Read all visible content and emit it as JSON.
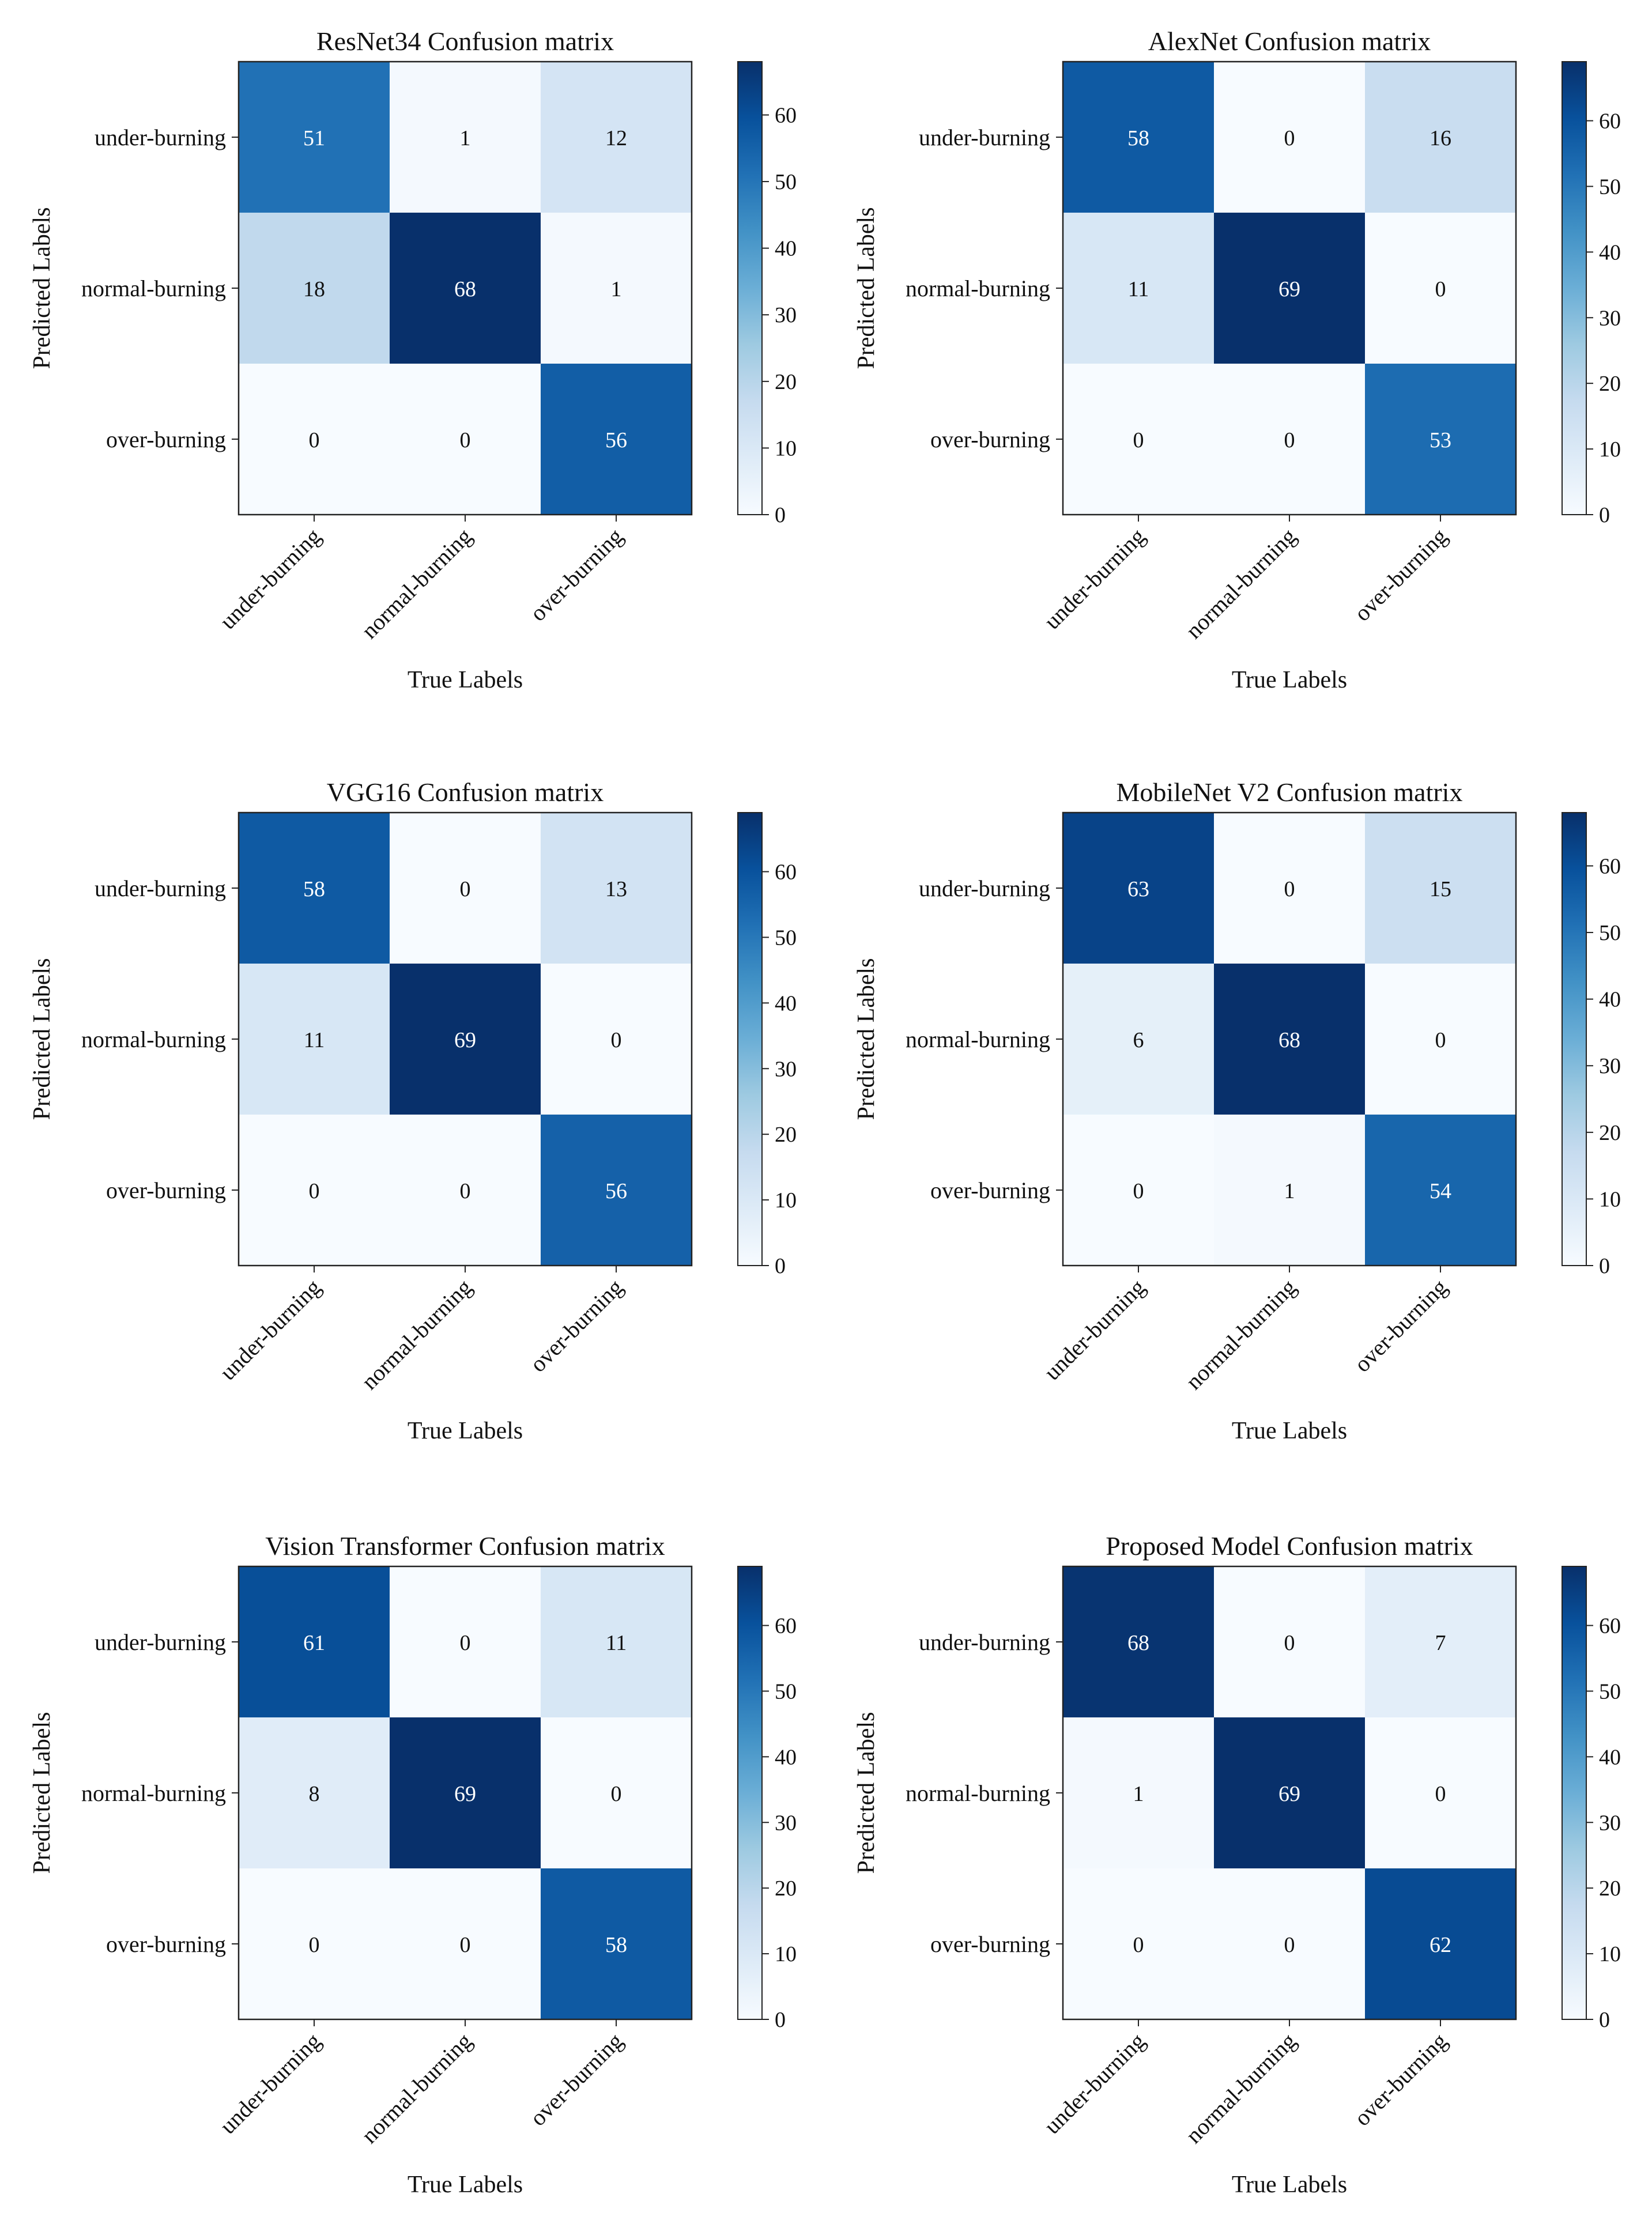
{
  "figure": {
    "layout": "3 rows x 2 columns of confusion matrices"
  },
  "chart_data": [
    {
      "type": "heatmap",
      "title": "ResNet34 Confusion matrix",
      "xlabel": "True Labels",
      "ylabel": "Predicted Labels",
      "x_categories": [
        "under-burning",
        "normal-burning",
        "over-burning"
      ],
      "y_categories": [
        "under-burning",
        "normal-burning",
        "over-burning"
      ],
      "values": [
        [
          51,
          1,
          12
        ],
        [
          18,
          68,
          1
        ],
        [
          0,
          0,
          56
        ]
      ],
      "colormap": "Blues",
      "vmin": 0,
      "vmax": 68,
      "colorbar_ticks": [
        0,
        10,
        20,
        30,
        40,
        50,
        60
      ]
    },
    {
      "type": "heatmap",
      "title": "AlexNet Confusion matrix",
      "xlabel": "True Labels",
      "ylabel": "Predicted Labels",
      "x_categories": [
        "under-burning",
        "normal-burning",
        "over-burning"
      ],
      "y_categories": [
        "under-burning",
        "normal-burning",
        "over-burning"
      ],
      "values": [
        [
          58,
          0,
          16
        ],
        [
          11,
          69,
          0
        ],
        [
          0,
          0,
          53
        ]
      ],
      "colormap": "Blues",
      "vmin": 0,
      "vmax": 69,
      "colorbar_ticks": [
        0,
        10,
        20,
        30,
        40,
        50,
        60
      ]
    },
    {
      "type": "heatmap",
      "title": "VGG16 Confusion matrix",
      "xlabel": "True Labels",
      "ylabel": "Predicted Labels",
      "x_categories": [
        "under-burning",
        "normal-burning",
        "over-burning"
      ],
      "y_categories": [
        "under-burning",
        "normal-burning",
        "over-burning"
      ],
      "values": [
        [
          58,
          0,
          13
        ],
        [
          11,
          69,
          0
        ],
        [
          0,
          0,
          56
        ]
      ],
      "colormap": "Blues",
      "vmin": 0,
      "vmax": 69,
      "colorbar_ticks": [
        0,
        10,
        20,
        30,
        40,
        50,
        60
      ]
    },
    {
      "type": "heatmap",
      "title": "MobileNet V2 Confusion matrix",
      "xlabel": "True Labels",
      "ylabel": "Predicted Labels",
      "x_categories": [
        "under-burning",
        "normal-burning",
        "over-burning"
      ],
      "y_categories": [
        "under-burning",
        "normal-burning",
        "over-burning"
      ],
      "values": [
        [
          63,
          0,
          15
        ],
        [
          6,
          68,
          0
        ],
        [
          0,
          1,
          54
        ]
      ],
      "colormap": "Blues",
      "vmin": 0,
      "vmax": 68,
      "colorbar_ticks": [
        0,
        10,
        20,
        30,
        40,
        50,
        60
      ]
    },
    {
      "type": "heatmap",
      "title": "Vision Transformer Confusion matrix",
      "xlabel": "True Labels",
      "ylabel": "Predicted Labels",
      "x_categories": [
        "under-burning",
        "normal-burning",
        "over-burning"
      ],
      "y_categories": [
        "under-burning",
        "normal-burning",
        "over-burning"
      ],
      "values": [
        [
          61,
          0,
          11
        ],
        [
          8,
          69,
          0
        ],
        [
          0,
          0,
          58
        ]
      ],
      "colormap": "Blues",
      "vmin": 0,
      "vmax": 69,
      "colorbar_ticks": [
        0,
        10,
        20,
        30,
        40,
        50,
        60
      ]
    },
    {
      "type": "heatmap",
      "title": "Proposed Model Confusion matrix",
      "xlabel": "True Labels",
      "ylabel": "Predicted Labels",
      "x_categories": [
        "under-burning",
        "normal-burning",
        "over-burning"
      ],
      "y_categories": [
        "under-burning",
        "normal-burning",
        "over-burning"
      ],
      "values": [
        [
          68,
          0,
          7
        ],
        [
          1,
          69,
          0
        ],
        [
          0,
          0,
          62
        ]
      ],
      "colormap": "Blues",
      "vmin": 0,
      "vmax": 69,
      "colorbar_ticks": [
        0,
        10,
        20,
        30,
        40,
        50,
        60
      ]
    }
  ]
}
